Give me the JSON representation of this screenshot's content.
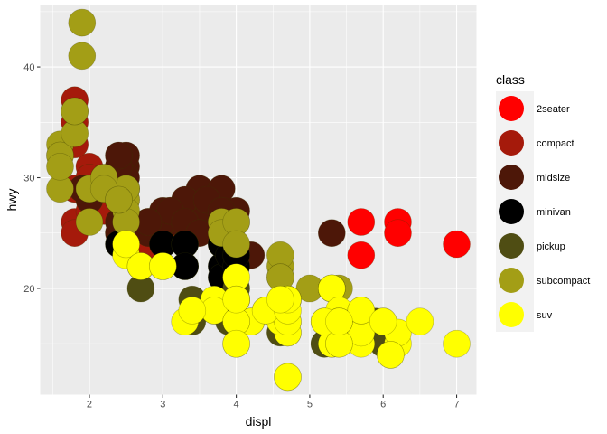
{
  "chart_data": {
    "type": "scatter",
    "xlabel": "displ",
    "ylabel": "hwy",
    "xlim": [
      1.33,
      7.27
    ],
    "ylim": [
      10.4,
      45.6
    ],
    "xticks": [
      2,
      3,
      4,
      5,
      6,
      7
    ],
    "yticks": [
      20,
      30,
      40
    ],
    "grid": true,
    "legend": {
      "title": "class",
      "placement": "right",
      "items": [
        {
          "name": "2seater",
          "color": "#FF0000"
        },
        {
          "name": "compact",
          "color": "#A51A0B"
        },
        {
          "name": "midsize",
          "color": "#4D1708"
        },
        {
          "name": "minivan",
          "color": "#000000"
        },
        {
          "name": "pickup",
          "color": "#4F4D13"
        },
        {
          "name": "subcompact",
          "color": "#A39E16"
        },
        {
          "name": "suv",
          "color": "#FFFF00"
        }
      ]
    },
    "series": [
      {
        "name": "2seater",
        "points": [
          [
            5.7,
            26
          ],
          [
            5.7,
            23
          ],
          [
            6.2,
            26
          ],
          [
            6.2,
            25
          ],
          [
            7.0,
            24
          ]
        ]
      },
      {
        "name": "compact",
        "points": [
          [
            1.8,
            29
          ],
          [
            1.8,
            29
          ],
          [
            2.0,
            31
          ],
          [
            2.0,
            30
          ],
          [
            2.8,
            26
          ],
          [
            2.8,
            26
          ],
          [
            3.1,
            27
          ],
          [
            1.8,
            26
          ],
          [
            1.8,
            25
          ],
          [
            2.0,
            28
          ],
          [
            2.0,
            29
          ],
          [
            2.8,
            25
          ],
          [
            2.8,
            25
          ],
          [
            3.1,
            25
          ],
          [
            3.1,
            25
          ],
          [
            1.8,
            37
          ],
          [
            1.8,
            35
          ],
          [
            1.8,
            33
          ],
          [
            2.0,
            29
          ],
          [
            2.0,
            27
          ],
          [
            2.0,
            30
          ],
          [
            2.2,
            27
          ],
          [
            2.2,
            29
          ],
          [
            2.4,
            31
          ],
          [
            2.4,
            31
          ],
          [
            2.5,
            29
          ],
          [
            2.5,
            28
          ],
          [
            3.3,
            27
          ],
          [
            2.8,
            23
          ],
          [
            3.0,
            26
          ],
          [
            3.3,
            26
          ],
          [
            2.4,
            30
          ],
          [
            2.4,
            29
          ],
          [
            3.0,
            26
          ],
          [
            2.2,
            27
          ],
          [
            2.7,
            23
          ]
        ]
      },
      {
        "name": "midsize",
        "points": [
          [
            2.8,
            26
          ],
          [
            2.8,
            25
          ],
          [
            3.1,
            26
          ],
          [
            2.4,
            26
          ],
          [
            2.4,
            25
          ],
          [
            3.0,
            26
          ],
          [
            3.3,
            27
          ],
          [
            3.5,
            28
          ],
          [
            3.5,
            26
          ],
          [
            3.8,
            26
          ],
          [
            4.0,
            26
          ],
          [
            2.5,
            31
          ],
          [
            2.5,
            32
          ],
          [
            2.5,
            30
          ],
          [
            2.5,
            29
          ],
          [
            2.2,
            29
          ],
          [
            2.2,
            30
          ],
          [
            2.4,
            31
          ],
          [
            2.4,
            32
          ],
          [
            3.0,
            27
          ],
          [
            3.0,
            26
          ],
          [
            3.5,
            27
          ],
          [
            3.5,
            29
          ],
          [
            3.5,
            26
          ],
          [
            3.3,
            28
          ],
          [
            3.8,
            26
          ],
          [
            3.8,
            29
          ],
          [
            4.2,
            23
          ],
          [
            5.3,
            25
          ],
          [
            3.1,
            27
          ],
          [
            3.3,
            26
          ],
          [
            2.0,
            28
          ],
          [
            2.0,
            29
          ],
          [
            2.8,
            26
          ],
          [
            1.9,
            29
          ],
          [
            3.5,
            25
          ],
          [
            3.6,
            28
          ],
          [
            3.9,
            25
          ],
          [
            4.0,
            27
          ],
          [
            3.8,
            27
          ],
          [
            2.4,
            28
          ]
        ]
      },
      {
        "name": "minivan",
        "points": [
          [
            2.4,
            24
          ],
          [
            3.0,
            24
          ],
          [
            3.3,
            22
          ],
          [
            3.3,
            22
          ],
          [
            3.3,
            24
          ],
          [
            3.3,
            24
          ],
          [
            3.3,
            22
          ],
          [
            3.8,
            22
          ],
          [
            3.8,
            24
          ],
          [
            3.8,
            24
          ],
          [
            4.0,
            23
          ],
          [
            3.8,
            21
          ],
          [
            3.9,
            23
          ],
          [
            4.0,
            22
          ],
          [
            4.0,
            23
          ]
        ]
      },
      {
        "name": "pickup",
        "points": [
          [
            2.7,
            20
          ],
          [
            2.7,
            22
          ],
          [
            3.4,
            19
          ],
          [
            3.4,
            17
          ],
          [
            3.9,
            17
          ],
          [
            4.7,
            17
          ],
          [
            4.7,
            19
          ],
          [
            5.2,
            15
          ],
          [
            5.2,
            15
          ],
          [
            5.7,
            17
          ],
          [
            5.9,
            17
          ],
          [
            4.7,
            16
          ],
          [
            5.2,
            17
          ],
          [
            4.7,
            19
          ],
          [
            3.7,
            18
          ],
          [
            4.0,
            20
          ],
          [
            4.2,
            17
          ],
          [
            4.6,
            16
          ],
          [
            5.4,
            16
          ],
          [
            6.0,
            15
          ],
          [
            5.3,
            15
          ],
          [
            4.4,
            18
          ]
        ]
      },
      {
        "name": "subcompact",
        "points": [
          [
            1.6,
            33
          ],
          [
            1.6,
            32
          ],
          [
            1.6,
            29
          ],
          [
            1.6,
            32
          ],
          [
            1.8,
            34
          ],
          [
            1.8,
            36
          ],
          [
            1.8,
            36
          ],
          [
            1.9,
            44
          ],
          [
            1.9,
            41
          ],
          [
            2.0,
            29
          ],
          [
            2.0,
            26
          ],
          [
            2.0,
            29
          ],
          [
            2.5,
            29
          ],
          [
            2.5,
            28
          ],
          [
            2.5,
            27
          ],
          [
            2.5,
            29
          ],
          [
            2.5,
            26
          ],
          [
            3.8,
            26
          ],
          [
            3.8,
            25
          ],
          [
            4.0,
            26
          ],
          [
            4.0,
            24
          ],
          [
            4.6,
            22
          ],
          [
            4.6,
            23
          ],
          [
            4.6,
            21
          ],
          [
            5.4,
            20
          ],
          [
            2.2,
            30
          ],
          [
            2.2,
            29
          ],
          [
            2.4,
            28
          ],
          [
            2.4,
            28
          ],
          [
            1.6,
            31
          ],
          [
            4.6,
            19
          ],
          [
            4.6,
            21
          ],
          [
            5.0,
            20
          ]
        ]
      },
      {
        "name": "suv",
        "points": [
          [
            5.3,
            20
          ],
          [
            5.3,
            15
          ],
          [
            5.3,
            20
          ],
          [
            5.7,
            17
          ],
          [
            6.0,
            17
          ],
          [
            5.7,
            16
          ],
          [
            5.7,
            17
          ],
          [
            6.2,
            15
          ],
          [
            6.2,
            16
          ],
          [
            7.0,
            15
          ],
          [
            5.3,
            20
          ],
          [
            5.3,
            20
          ],
          [
            5.7,
            15
          ],
          [
            6.5,
            17
          ],
          [
            4.7,
            12
          ],
          [
            4.7,
            12
          ],
          [
            4.7,
            16
          ],
          [
            4.7,
            19
          ],
          [
            5.7,
            16
          ],
          [
            6.1,
            14
          ],
          [
            4.0,
            17
          ],
          [
            4.0,
            19
          ],
          [
            4.6,
            17
          ],
          [
            5.4,
            15
          ],
          [
            5.4,
            18
          ],
          [
            5.4,
            17
          ],
          [
            4.0,
            15
          ],
          [
            4.0,
            19
          ],
          [
            4.0,
            17
          ],
          [
            4.6,
            18
          ],
          [
            5.4,
            17
          ],
          [
            3.3,
            17
          ],
          [
            4.0,
            19
          ],
          [
            4.7,
            17
          ],
          [
            4.7,
            19
          ],
          [
            5.7,
            18
          ],
          [
            4.2,
            17
          ],
          [
            4.4,
            18
          ],
          [
            2.5,
            23
          ],
          [
            2.5,
            24
          ],
          [
            2.7,
            22
          ],
          [
            2.7,
            22
          ],
          [
            3.0,
            22
          ],
          [
            3.0,
            22
          ],
          [
            4.0,
            21
          ],
          [
            4.0,
            19
          ],
          [
            3.7,
            19
          ],
          [
            3.7,
            18
          ],
          [
            4.0,
            17
          ],
          [
            4.7,
            18
          ],
          [
            4.7,
            19
          ],
          [
            5.2,
            17
          ],
          [
            5.7,
            18
          ],
          [
            6.1,
            14
          ],
          [
            4.0,
            17
          ],
          [
            4.0,
            15
          ],
          [
            4.6,
            19
          ],
          [
            5.4,
            15
          ],
          [
            5.4,
            17
          ],
          [
            6.0,
            17
          ],
          [
            3.4,
            18
          ],
          [
            4.0,
            19
          ]
        ]
      }
    ]
  }
}
